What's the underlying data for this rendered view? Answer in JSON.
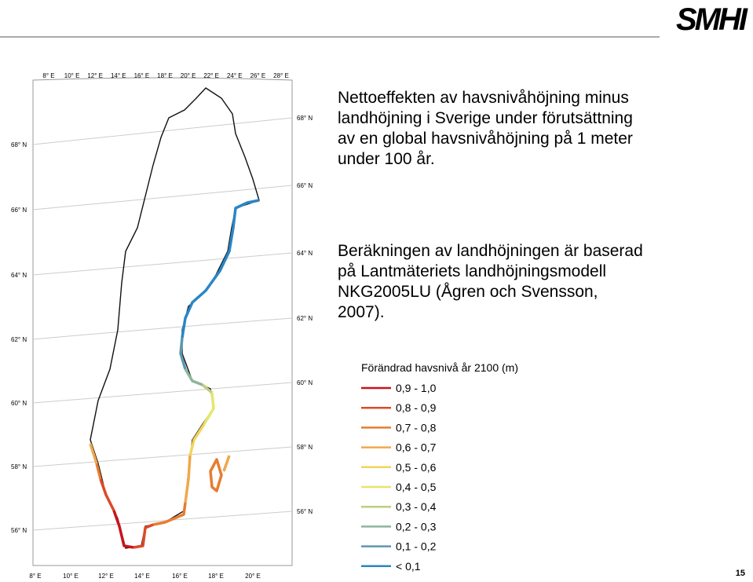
{
  "header": {
    "logo": "SMHI"
  },
  "paragraphs": [
    [
      "Nettoeffekten av havsnivåhöjning minus",
      "landhöjning i Sverige under förutsättning",
      "av en global havsnivåhöjning på 1 meter",
      "under 100 år."
    ],
    [
      "Beräkningen av landhöjningen är baserad",
      "på Lantmäteriets landhöjningsmodell",
      "NKG2005LU (Ågren och Svensson,",
      "2007)."
    ]
  ],
  "map": {
    "top_longitudes": [
      "8° E",
      "10° E",
      "12° E",
      "14° E",
      "16° E",
      "18° E",
      "20° E",
      "22° E",
      "24° E",
      "26° E",
      "28° E"
    ],
    "bottom_longitudes": [
      "8° E",
      "10° E",
      "12° E",
      "14° E",
      "16° E",
      "18° E",
      "20° E"
    ],
    "left_latitudes": [
      "68° N",
      "66° N",
      "64° N",
      "62° N",
      "60° N",
      "58° N",
      "56° N"
    ],
    "right_latitudes": [
      "68° N",
      "66° N",
      "64° N",
      "62° N",
      "60° N",
      "58° N",
      "56° N"
    ]
  },
  "legend": {
    "title": "Förändrad havsnivå år 2100 (m)",
    "items": [
      {
        "label": "0,9 - 1,0",
        "color": "#c8141e"
      },
      {
        "label": "0,8 - 0,9",
        "color": "#dc4a2a"
      },
      {
        "label": "0,7 - 0,8",
        "color": "#e87c30"
      },
      {
        "label": "0,6 - 0,7",
        "color": "#f0a84c"
      },
      {
        "label": "0,5 - 0,6",
        "color": "#f2d45a"
      },
      {
        "label": "0,4 - 0,5",
        "color": "#e6e66c"
      },
      {
        "label": "0,3 - 0,4",
        "color": "#bccf7c"
      },
      {
        "label": "0,2 - 0,3",
        "color": "#8db59c"
      },
      {
        "label": "0,1 - 0,2",
        "color": "#5d98ae"
      },
      {
        "label": "< 0,1",
        "color": "#2a86c6"
      }
    ]
  },
  "page_number": "15"
}
